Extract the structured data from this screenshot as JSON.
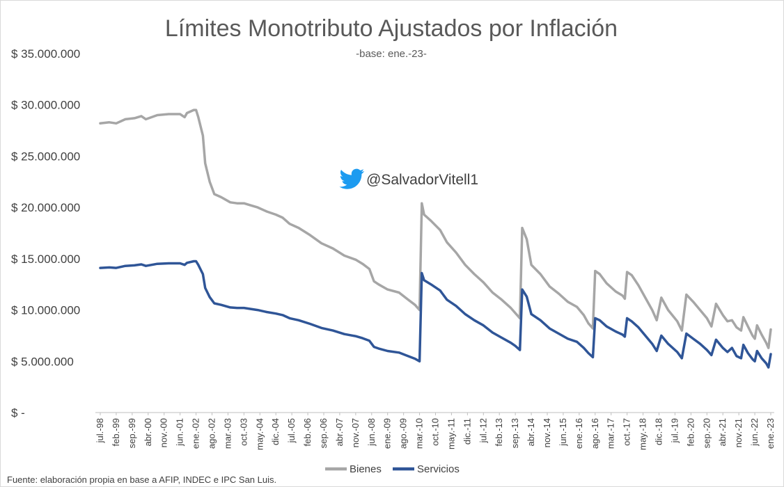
{
  "chart_data": {
    "type": "line",
    "title": "Límites Monotributo Ajustados por Inflación",
    "subtitle": "-base: ene.-23-",
    "twitter_handle": "@SalvadorVitell1",
    "source": "Fuente: elaboración propia en base a AFIP, INDEC e IPC San Luis.",
    "ylim": [
      0,
      35000000
    ],
    "y_ticks": [
      "$ -",
      "$ 5.000.000",
      "$ 10.000.000",
      "$ 15.000.000",
      "$ 20.000.000",
      "$ 25.000.000",
      "$ 30.000.000",
      "$ 35.000.000"
    ],
    "y_tick_values": [
      0,
      5000000,
      10000000,
      15000000,
      20000000,
      25000000,
      30000000,
      35000000
    ],
    "x_range": [
      "1998-07",
      "2023-01"
    ],
    "x_tick_labels": [
      "jul.-98",
      "feb.-99",
      "sep.-99",
      "abr.-00",
      "nov.-00",
      "jun.-01",
      "ene.-02",
      "ago.-02",
      "mar.-03",
      "oct.-03",
      "may.-04",
      "dic.-04",
      "jul.-05",
      "feb.-06",
      "sep.-06",
      "abr.-07",
      "nov.-07",
      "jun.-08",
      "ene.-09",
      "ago.-09",
      "mar.-10",
      "oct.-10",
      "may.-11",
      "dic.-11",
      "jul.-12",
      "feb.-13",
      "sep.-13",
      "abr.-14",
      "nov.-14",
      "jun.-15",
      "ene.-16",
      "ago.-16",
      "mar.-17",
      "oct.-17",
      "may.-18",
      "dic.-18",
      "jul.-19",
      "feb.-20",
      "sep.-20",
      "abr.-21",
      "nov.-21",
      "jun.-22",
      "ene.-23"
    ],
    "legend_position": "bottom",
    "grid": false,
    "series": [
      {
        "name": "Bienes",
        "color": "#a6a6a6",
        "points": [
          [
            "1998-07",
            28200000
          ],
          [
            "1998-11",
            28300000
          ],
          [
            "1999-02",
            28200000
          ],
          [
            "1999-06",
            28600000
          ],
          [
            "1999-10",
            28700000
          ],
          [
            "2000-01",
            28900000
          ],
          [
            "2000-03",
            28600000
          ],
          [
            "2000-08",
            29000000
          ],
          [
            "2001-01",
            29100000
          ],
          [
            "2001-06",
            29100000
          ],
          [
            "2001-08",
            28800000
          ],
          [
            "2001-09",
            29200000
          ],
          [
            "2001-12",
            29500000
          ],
          [
            "2002-01",
            29500000
          ],
          [
            "2002-02",
            28800000
          ],
          [
            "2002-04",
            27000000
          ],
          [
            "2002-05",
            24300000
          ],
          [
            "2002-07",
            22500000
          ],
          [
            "2002-09",
            21300000
          ],
          [
            "2002-12",
            21000000
          ],
          [
            "2003-04",
            20500000
          ],
          [
            "2003-07",
            20400000
          ],
          [
            "2003-10",
            20400000
          ],
          [
            "2004-01",
            20200000
          ],
          [
            "2004-04",
            20000000
          ],
          [
            "2004-08",
            19600000
          ],
          [
            "2004-12",
            19300000
          ],
          [
            "2005-03",
            19000000
          ],
          [
            "2005-06",
            18400000
          ],
          [
            "2005-10",
            18000000
          ],
          [
            "2006-03",
            17300000
          ],
          [
            "2006-08",
            16500000
          ],
          [
            "2007-01",
            16000000
          ],
          [
            "2007-06",
            15300000
          ],
          [
            "2007-11",
            14900000
          ],
          [
            "2008-02",
            14500000
          ],
          [
            "2008-05",
            14000000
          ],
          [
            "2008-07",
            12800000
          ],
          [
            "2008-09",
            12500000
          ],
          [
            "2009-01",
            12000000
          ],
          [
            "2009-06",
            11700000
          ],
          [
            "2009-10",
            11000000
          ],
          [
            "2010-01",
            10500000
          ],
          [
            "2010-03",
            10000000
          ],
          [
            "2010-04",
            20400000
          ],
          [
            "2010-05",
            19300000
          ],
          [
            "2010-08",
            18700000
          ],
          [
            "2010-12",
            17800000
          ],
          [
            "2011-03",
            16600000
          ],
          [
            "2011-07",
            15600000
          ],
          [
            "2011-11",
            14400000
          ],
          [
            "2012-03",
            13500000
          ],
          [
            "2012-07",
            12700000
          ],
          [
            "2012-11",
            11700000
          ],
          [
            "2013-03",
            11000000
          ],
          [
            "2013-07",
            10200000
          ],
          [
            "2013-09",
            9700000
          ],
          [
            "2013-11",
            9200000
          ],
          [
            "2013-12",
            18000000
          ],
          [
            "2014-02",
            16900000
          ],
          [
            "2014-04",
            14400000
          ],
          [
            "2014-08",
            13500000
          ],
          [
            "2014-12",
            12300000
          ],
          [
            "2015-04",
            11600000
          ],
          [
            "2015-08",
            10800000
          ],
          [
            "2015-12",
            10300000
          ],
          [
            "2016-03",
            9500000
          ],
          [
            "2016-05",
            8700000
          ],
          [
            "2016-07",
            8200000
          ],
          [
            "2016-08",
            13800000
          ],
          [
            "2016-10",
            13500000
          ],
          [
            "2017-01",
            12600000
          ],
          [
            "2017-05",
            11800000
          ],
          [
            "2017-08",
            11400000
          ],
          [
            "2017-09",
            11100000
          ],
          [
            "2017-10",
            13700000
          ],
          [
            "2017-12",
            13400000
          ],
          [
            "2018-03",
            12400000
          ],
          [
            "2018-06",
            11200000
          ],
          [
            "2018-09",
            10000000
          ],
          [
            "2018-11",
            9000000
          ],
          [
            "2019-01",
            11200000
          ],
          [
            "2019-04",
            10000000
          ],
          [
            "2019-08",
            8900000
          ],
          [
            "2019-10",
            8000000
          ],
          [
            "2019-12",
            11500000
          ],
          [
            "2020-03",
            10800000
          ],
          [
            "2020-06",
            10000000
          ],
          [
            "2020-09",
            9200000
          ],
          [
            "2020-11",
            8400000
          ],
          [
            "2021-01",
            10600000
          ],
          [
            "2021-04",
            9500000
          ],
          [
            "2021-06",
            8900000
          ],
          [
            "2021-08",
            9000000
          ],
          [
            "2021-10",
            8300000
          ],
          [
            "2021-12",
            8000000
          ],
          [
            "2022-01",
            9300000
          ],
          [
            "2022-03",
            8400000
          ],
          [
            "2022-05",
            7500000
          ],
          [
            "2022-06",
            7200000
          ],
          [
            "2022-07",
            8500000
          ],
          [
            "2022-09",
            7600000
          ],
          [
            "2022-11",
            6800000
          ],
          [
            "2022-12",
            6300000
          ],
          [
            "2023-01",
            8100000
          ]
        ]
      },
      {
        "name": "Servicios",
        "color": "#2f5597",
        "points": [
          [
            "1998-07",
            14100000
          ],
          [
            "1998-11",
            14150000
          ],
          [
            "1999-02",
            14100000
          ],
          [
            "1999-06",
            14300000
          ],
          [
            "1999-10",
            14350000
          ],
          [
            "2000-01",
            14450000
          ],
          [
            "2000-03",
            14300000
          ],
          [
            "2000-08",
            14500000
          ],
          [
            "2001-01",
            14550000
          ],
          [
            "2001-06",
            14550000
          ],
          [
            "2001-08",
            14400000
          ],
          [
            "2001-09",
            14600000
          ],
          [
            "2001-12",
            14750000
          ],
          [
            "2002-01",
            14750000
          ],
          [
            "2002-02",
            14400000
          ],
          [
            "2002-04",
            13500000
          ],
          [
            "2002-05",
            12150000
          ],
          [
            "2002-07",
            11250000
          ],
          [
            "2002-09",
            10650000
          ],
          [
            "2002-12",
            10500000
          ],
          [
            "2003-04",
            10250000
          ],
          [
            "2003-07",
            10200000
          ],
          [
            "2003-10",
            10200000
          ],
          [
            "2004-01",
            10100000
          ],
          [
            "2004-04",
            10000000
          ],
          [
            "2004-08",
            9800000
          ],
          [
            "2004-12",
            9650000
          ],
          [
            "2005-03",
            9500000
          ],
          [
            "2005-06",
            9200000
          ],
          [
            "2005-10",
            9000000
          ],
          [
            "2006-03",
            8650000
          ],
          [
            "2006-08",
            8250000
          ],
          [
            "2007-01",
            8000000
          ],
          [
            "2007-06",
            7650000
          ],
          [
            "2007-11",
            7450000
          ],
          [
            "2008-02",
            7250000
          ],
          [
            "2008-05",
            7000000
          ],
          [
            "2008-07",
            6400000
          ],
          [
            "2008-09",
            6250000
          ],
          [
            "2009-01",
            6000000
          ],
          [
            "2009-06",
            5850000
          ],
          [
            "2009-10",
            5500000
          ],
          [
            "2010-01",
            5250000
          ],
          [
            "2010-03",
            5000000
          ],
          [
            "2010-04",
            13600000
          ],
          [
            "2010-05",
            12900000
          ],
          [
            "2010-08",
            12500000
          ],
          [
            "2010-12",
            11900000
          ],
          [
            "2011-03",
            11000000
          ],
          [
            "2011-07",
            10400000
          ],
          [
            "2011-11",
            9600000
          ],
          [
            "2012-03",
            9000000
          ],
          [
            "2012-07",
            8500000
          ],
          [
            "2012-11",
            7800000
          ],
          [
            "2013-03",
            7300000
          ],
          [
            "2013-07",
            6800000
          ],
          [
            "2013-09",
            6500000
          ],
          [
            "2013-11",
            6100000
          ],
          [
            "2013-12",
            12000000
          ],
          [
            "2014-02",
            11300000
          ],
          [
            "2014-04",
            9600000
          ],
          [
            "2014-08",
            9000000
          ],
          [
            "2014-12",
            8200000
          ],
          [
            "2015-04",
            7700000
          ],
          [
            "2015-08",
            7200000
          ],
          [
            "2015-12",
            6900000
          ],
          [
            "2016-03",
            6300000
          ],
          [
            "2016-05",
            5800000
          ],
          [
            "2016-07",
            5400000
          ],
          [
            "2016-08",
            9200000
          ],
          [
            "2016-10",
            9000000
          ],
          [
            "2017-01",
            8400000
          ],
          [
            "2017-05",
            7900000
          ],
          [
            "2017-08",
            7600000
          ],
          [
            "2017-09",
            7400000
          ],
          [
            "2017-10",
            9200000
          ],
          [
            "2017-12",
            8900000
          ],
          [
            "2018-03",
            8300000
          ],
          [
            "2018-06",
            7500000
          ],
          [
            "2018-09",
            6700000
          ],
          [
            "2018-11",
            6000000
          ],
          [
            "2019-01",
            7500000
          ],
          [
            "2019-04",
            6700000
          ],
          [
            "2019-08",
            5900000
          ],
          [
            "2019-10",
            5300000
          ],
          [
            "2019-12",
            7700000
          ],
          [
            "2020-03",
            7200000
          ],
          [
            "2020-06",
            6700000
          ],
          [
            "2020-09",
            6100000
          ],
          [
            "2020-11",
            5600000
          ],
          [
            "2021-01",
            7100000
          ],
          [
            "2021-04",
            6300000
          ],
          [
            "2021-06",
            5900000
          ],
          [
            "2021-08",
            6300000
          ],
          [
            "2021-10",
            5500000
          ],
          [
            "2021-12",
            5300000
          ],
          [
            "2022-01",
            6600000
          ],
          [
            "2022-03",
            5800000
          ],
          [
            "2022-05",
            5200000
          ],
          [
            "2022-06",
            5000000
          ],
          [
            "2022-07",
            6000000
          ],
          [
            "2022-09",
            5300000
          ],
          [
            "2022-11",
            4800000
          ],
          [
            "2022-12",
            4400000
          ],
          [
            "2023-01",
            5700000
          ]
        ]
      }
    ]
  }
}
